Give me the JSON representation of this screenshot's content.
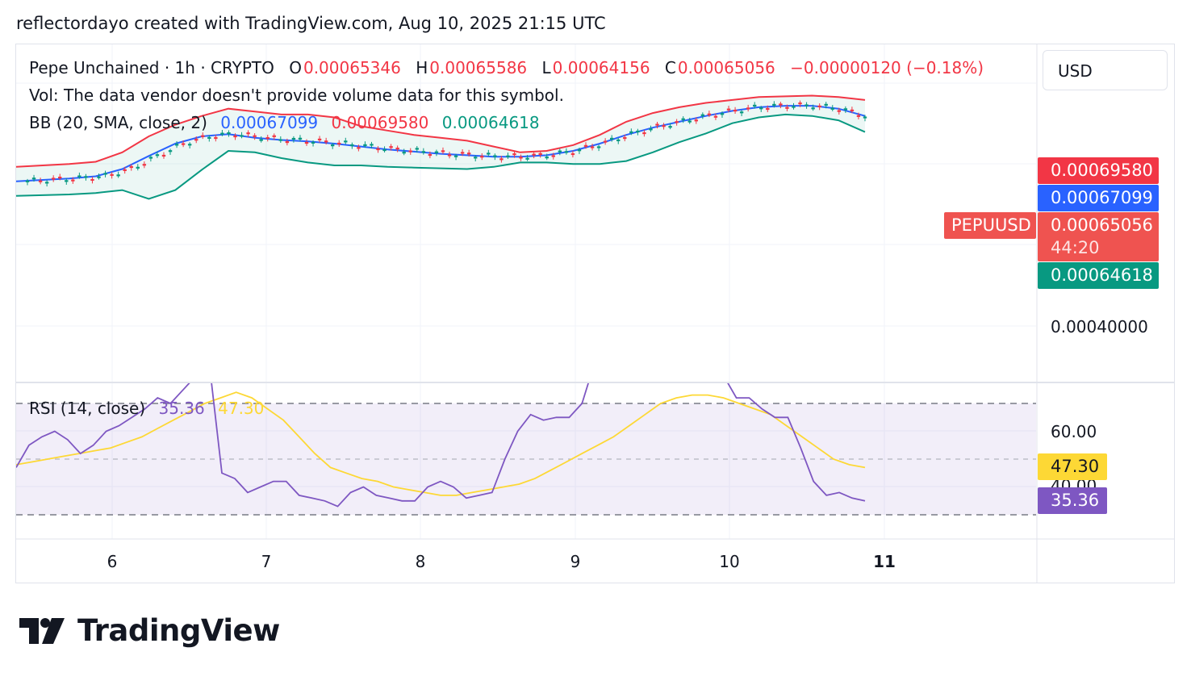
{
  "header": {
    "text": "reflectordayo created with TradingView.com, Aug 10, 2025 21:15 UTC"
  },
  "legend": {
    "symbol": "Pepe Unchained · 1h · CRYPTO",
    "o_label": "O",
    "o_value": "0.00065346",
    "h_label": "H",
    "h_value": "0.00065586",
    "l_label": "L",
    "l_value": "0.00064156",
    "c_label": "C",
    "c_value": "0.00065056",
    "change": "−0.00000120 (−0.18%)",
    "vol": "Vol: The data vendor doesn't provide volume data for this symbol.",
    "bb_label": "BB (20, SMA, close, 2)",
    "bb_basis": "0.00067099",
    "bb_upper": "0.00069580",
    "bb_lower": "0.00064618"
  },
  "rsi_legend": {
    "label": "RSI (14, close)",
    "rsi": "35.36",
    "ma": "47.30"
  },
  "currency_button": "USD",
  "price_tags": {
    "upper": "0.00069580",
    "basis": "0.00067099",
    "symbol": "PEPUUSD",
    "close": "0.00065056",
    "countdown": "44:20",
    "lower": "0.00064618"
  },
  "price_axis": {
    "tick": "0.00040000"
  },
  "rsi_axis": {
    "tick_60": "60.00",
    "tick_40": "40.00",
    "rsi_tag": "35.36",
    "ma_tag": "47.30"
  },
  "x_axis": {
    "labels": [
      "6",
      "7",
      "8",
      "9",
      "10",
      "11"
    ]
  },
  "brand": {
    "name": "TradingView"
  },
  "colors": {
    "upper": "#f23645",
    "basis": "#2962ff",
    "lower": "#089981",
    "rsi": "#7e57c2",
    "rsi_ma": "#fdd835",
    "up": "#089981",
    "down": "#f23645"
  },
  "chart_data": [
    {
      "type": "candlestick",
      "title": "Pepe Unchained · 1h · CRYPTO",
      "x_ticks": [
        "6",
        "7",
        "8",
        "9",
        "10",
        "11"
      ],
      "y_tick": "0.00040000",
      "bollinger_bands": {
        "upper": [
          0.00062,
          0.000622,
          0.000624,
          0.000627,
          0.00064,
          0.000662,
          0.000678,
          0.00069,
          0.0007,
          0.000696,
          0.000692,
          0.000692,
          0.000688,
          0.000676,
          0.00067,
          0.000664,
          0.00066,
          0.000656,
          0.000648,
          0.00064,
          0.000642,
          0.00065,
          0.000664,
          0.000682,
          0.000694,
          0.000702,
          0.000708,
          0.000712,
          0.000716,
          0.000717,
          0.000718,
          0.000716,
          0.000712
        ],
        "basis": [
          0.0006,
          0.000602,
          0.000604,
          0.000607,
          0.000617,
          0.000635,
          0.000652,
          0.000662,
          0.000665,
          0.00066,
          0.000657,
          0.000655,
          0.000652,
          0.000648,
          0.000644,
          0.000641,
          0.000638,
          0.000636,
          0.000634,
          0.000634,
          0.000636,
          0.000642,
          0.000652,
          0.000664,
          0.000674,
          0.000682,
          0.00069,
          0.000697,
          0.000702,
          0.000704,
          0.000704,
          0.0007,
          0.00069
        ],
        "lower": [
          0.00058,
          0.000581,
          0.000582,
          0.000584,
          0.000588,
          0.000576,
          0.000588,
          0.000616,
          0.000642,
          0.00064,
          0.000632,
          0.000626,
          0.000622,
          0.000622,
          0.00062,
          0.000619,
          0.000618,
          0.000617,
          0.00062,
          0.000626,
          0.000626,
          0.000624,
          0.000624,
          0.000628,
          0.00064,
          0.000654,
          0.000666,
          0.00068,
          0.000688,
          0.000692,
          0.00069,
          0.000684,
          0.000668
        ]
      }
    },
    {
      "type": "line",
      "title": "RSI (14, close)",
      "band": [
        40,
        60
      ],
      "y_ticks": [
        "60.00",
        "40.00"
      ],
      "series": [
        {
          "name": "RSI",
          "values": [
            47,
            55,
            58,
            60,
            57,
            52,
            55,
            60,
            62,
            65,
            68,
            72,
            70,
            75,
            80,
            85,
            45,
            43,
            38,
            40,
            42,
            42,
            37,
            36,
            35,
            33,
            38,
            40,
            37,
            36,
            35,
            35,
            40,
            42,
            40,
            36,
            37,
            38,
            50,
            60,
            66,
            64,
            65,
            65,
            70,
            85,
            88,
            86,
            90,
            82,
            80,
            78,
            82,
            88,
            88,
            80,
            72,
            72,
            68,
            65,
            65,
            54,
            42,
            37,
            38,
            36,
            35
          ]
        },
        {
          "name": "RSI MA",
          "values": [
            48,
            49,
            50,
            51,
            52,
            53,
            54,
            56,
            58,
            61,
            64,
            67,
            70,
            72,
            74,
            72,
            68,
            64,
            58,
            52,
            47,
            45,
            43,
            42,
            40,
            39,
            38,
            37,
            37,
            38,
            39,
            40,
            41,
            43,
            46,
            49,
            52,
            55,
            58,
            62,
            66,
            70,
            72,
            73,
            73,
            72,
            70,
            68,
            66,
            62,
            58,
            54,
            50,
            48,
            47
          ]
        }
      ]
    }
  ]
}
